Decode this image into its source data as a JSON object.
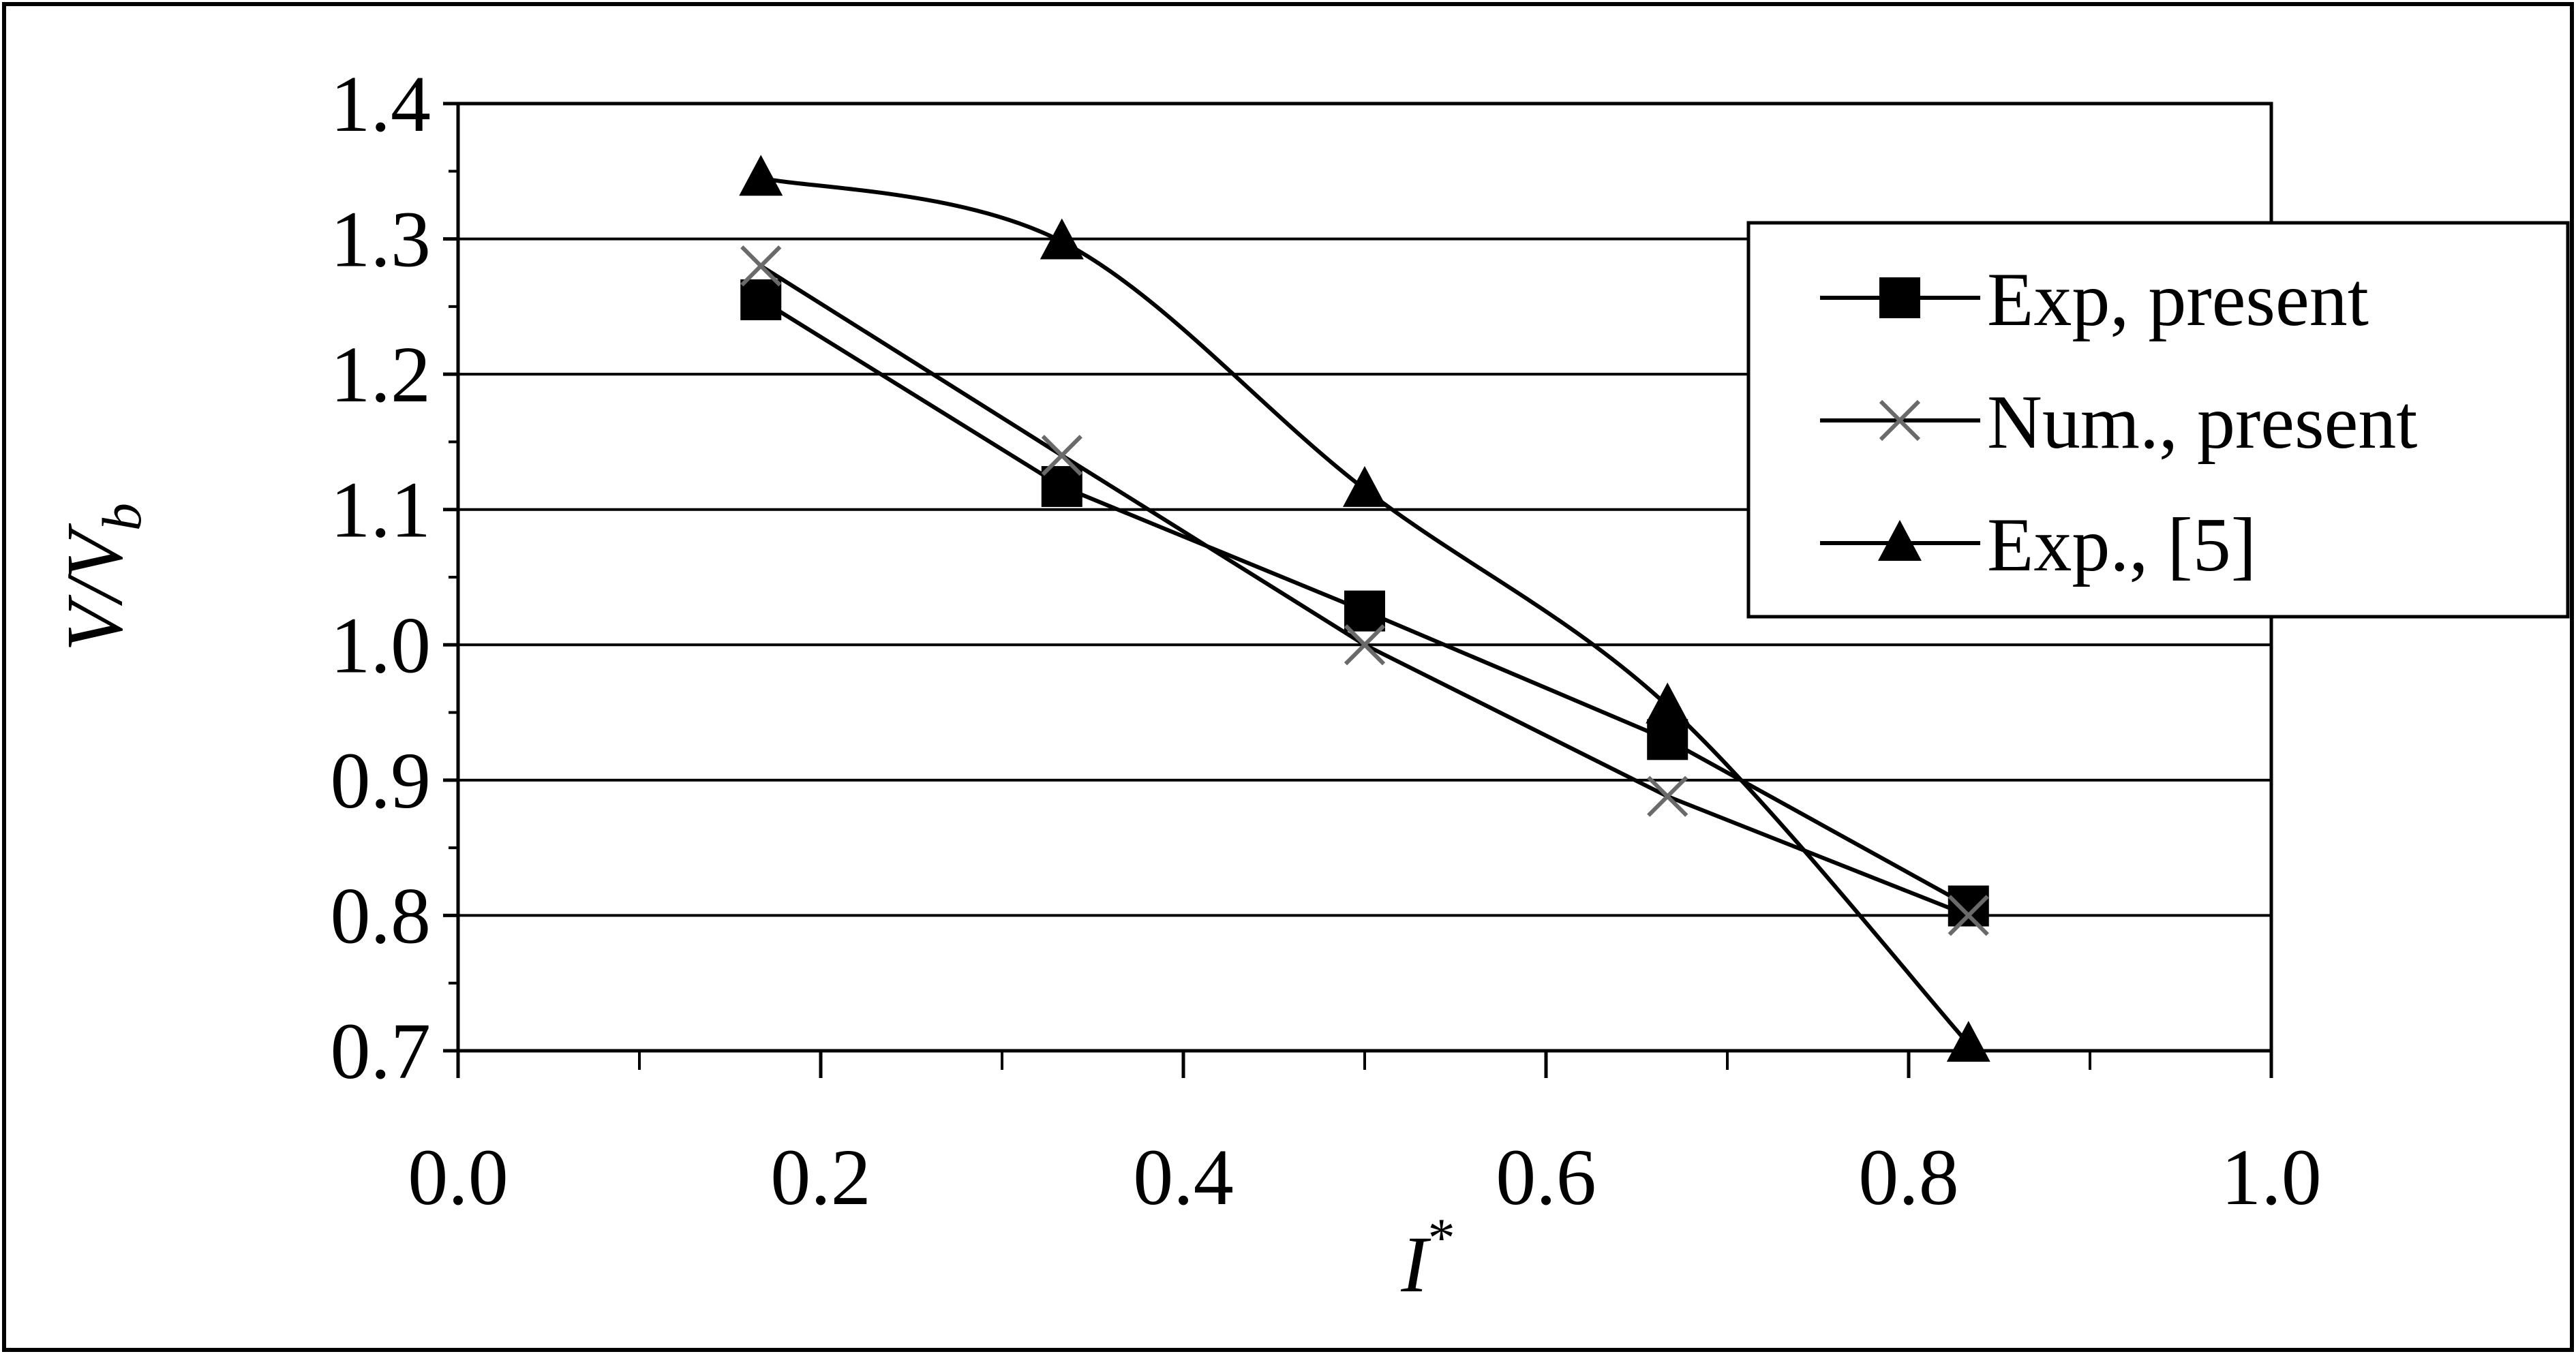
{
  "chart_data": {
    "type": "line",
    "title": "",
    "xlabel": "I*",
    "xlabel_main": "I",
    "xlabel_sup": "*",
    "ylabel": "V/V_b",
    "ylabel_main": "V/V",
    "ylabel_sub": "b",
    "xlim": [
      0.0,
      1.0
    ],
    "ylim": [
      0.7,
      1.4
    ],
    "x_ticks": [
      "0.0",
      "0.2",
      "0.4",
      "0.6",
      "0.8",
      "1.0"
    ],
    "y_ticks": [
      "0.7",
      "0.8",
      "0.9",
      "1.0",
      "1.1",
      "1.2",
      "1.3",
      "1.4"
    ],
    "grid": "horizontal",
    "legend_position": "top-right",
    "series": [
      {
        "name": "Exp, present",
        "marker": "square",
        "smooth": false,
        "x": [
          0.167,
          0.333,
          0.5,
          0.667,
          0.833
        ],
        "y": [
          1.255,
          1.117,
          1.025,
          0.93,
          0.807
        ]
      },
      {
        "name": "Num., present",
        "marker": "cross",
        "smooth": false,
        "x": [
          0.167,
          0.333,
          0.5,
          0.667,
          0.833
        ],
        "y": [
          1.28,
          1.14,
          1.0,
          0.888,
          0.8
        ]
      },
      {
        "name": "Exp., [5]",
        "marker": "triangle",
        "smooth": true,
        "x": [
          0.167,
          0.333,
          0.5,
          0.667,
          0.833
        ],
        "y": [
          1.345,
          1.298,
          1.115,
          0.955,
          0.705
        ]
      }
    ]
  }
}
